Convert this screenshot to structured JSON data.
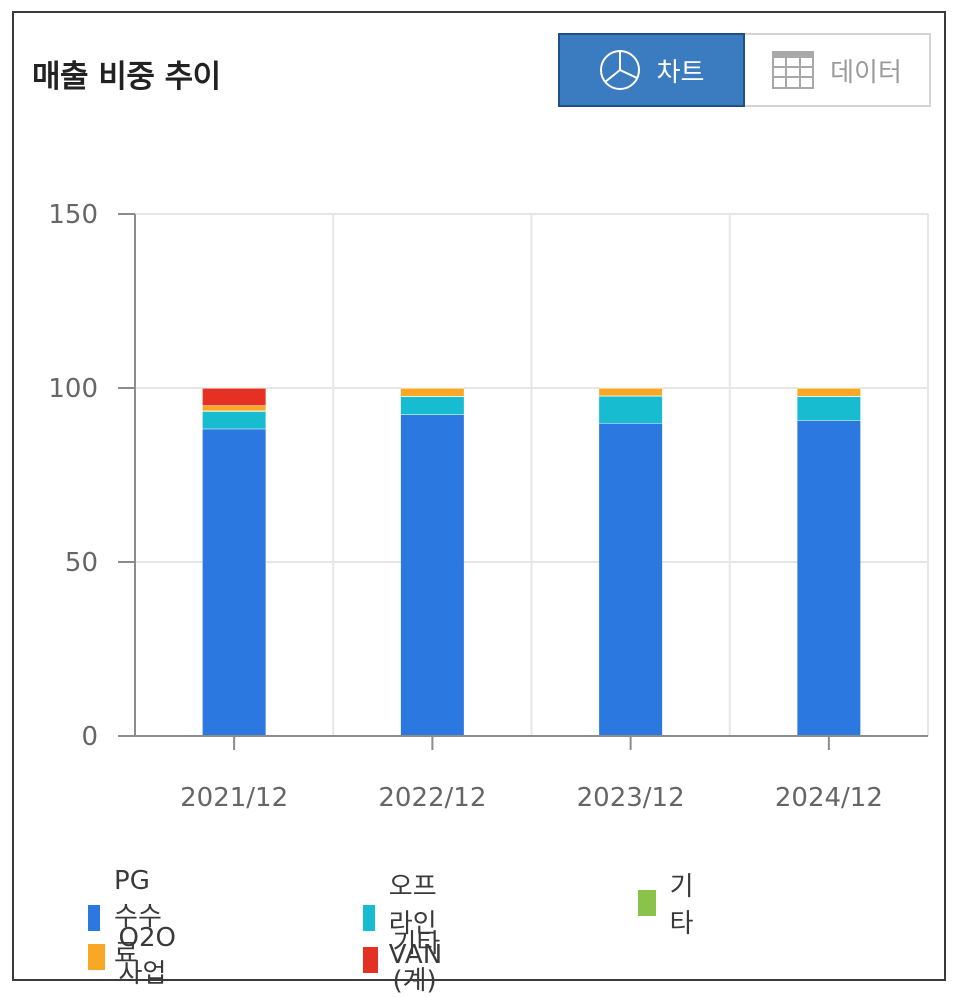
{
  "header": {
    "title": "매출 비중 추이",
    "chart_tab_label": "차트",
    "data_tab_label": "데이터"
  },
  "colors": {
    "accent": "#3b7bbf",
    "grid": "#e6e6e6",
    "axis": "#8c8c8c"
  },
  "chart_data": {
    "type": "bar",
    "stacked": true,
    "title": "매출 비중 추이",
    "categories": [
      "2021/12",
      "2022/12",
      "2023/12",
      "2024/12"
    ],
    "ylim": [
      0,
      150
    ],
    "yticks": [
      "0",
      "50",
      "100",
      "150"
    ],
    "grid": true,
    "legend_position": "bottom",
    "series": [
      {
        "name": "PG수수료",
        "color": "#2a78e0",
        "values": [
          88.3,
          92.4,
          89.9,
          90.7
        ]
      },
      {
        "name": "오프라인VAN",
        "color": "#17bcd0",
        "values": [
          5.0,
          5.2,
          7.8,
          6.9
        ]
      },
      {
        "name": "기타",
        "color": "#8bc34a",
        "values": [
          0.2,
          0.1,
          0.1,
          0.1
        ]
      },
      {
        "name": "O2O사업",
        "color": "#f9a825",
        "values": [
          1.5,
          2.3,
          2.2,
          2.3
        ]
      },
      {
        "name": "기타(계)",
        "color": "#e53124",
        "values": [
          5.0,
          0,
          0,
          0
        ]
      }
    ]
  }
}
